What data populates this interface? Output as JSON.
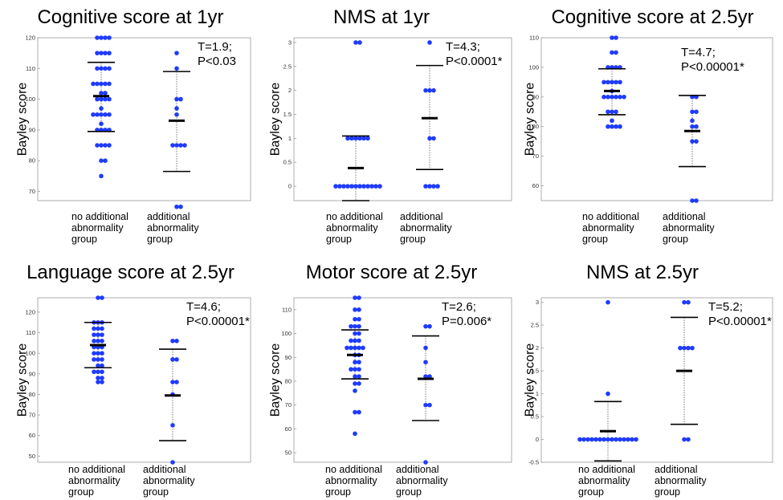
{
  "colors": {
    "point": "#1f3bff",
    "axis": "#9a9a9a",
    "line": "#000000"
  },
  "chart_data": [
    {
      "type": "scatter",
      "title": "Cognitive score at 1yr",
      "ylabel": "Bayley score",
      "xlabel": "",
      "categories": [
        "no additional abnormality group",
        "additional abnormality group"
      ],
      "category_lines": [
        [
          "no additional",
          "abnormality",
          "group"
        ],
        [
          "additional",
          "abnormality",
          "group"
        ]
      ],
      "ylim": [
        67,
        120
      ],
      "yticks": [
        70,
        80,
        90,
        100,
        110,
        120
      ],
      "ytick_labels": [
        "70",
        "80",
        "90",
        "100",
        "110",
        "120"
      ],
      "groups": [
        {
          "name": "no additional abnormality group",
          "mean": 101,
          "sd_low": 89.5,
          "sd_high": 112,
          "points": [
            120,
            120,
            120,
            120,
            115,
            115,
            115,
            115,
            110,
            110,
            110,
            110,
            105,
            105,
            105,
            105,
            105,
            102,
            102,
            100,
            100,
            100,
            100,
            97,
            95,
            95,
            95,
            95,
            95,
            92,
            90,
            90,
            90,
            90,
            85,
            85,
            85,
            85,
            80,
            80,
            75
          ]
        },
        {
          "name": "additional abnormality group",
          "mean": 93,
          "sd_low": 76.5,
          "sd_high": 109,
          "points": [
            115,
            110,
            100,
            100,
            97,
            95,
            85,
            85,
            85,
            85,
            65,
            65
          ]
        }
      ],
      "annotation": [
        "T=1.9;",
        "P<0.03"
      ]
    },
    {
      "type": "scatter",
      "title": "NMS at 1yr",
      "ylabel": "Bayley score",
      "xlabel": "",
      "categories": [
        "no additional abnormality group",
        "additional abnormality group"
      ],
      "category_lines": [
        [
          "no additional",
          "abnormality",
          "group"
        ],
        [
          "additional",
          "abnormality",
          "group"
        ]
      ],
      "ylim": [
        -0.3,
        3.1
      ],
      "yticks": [
        0,
        0.5,
        1,
        1.5,
        2,
        2.5,
        3
      ],
      "ytick_labels": [
        "0",
        "0.5",
        "1",
        "1.5",
        "2",
        "2.5",
        "3"
      ],
      "groups": [
        {
          "name": "no additional abnormality group",
          "mean": 0.38,
          "sd_low": -0.3,
          "sd_high": 1.05,
          "points": [
            3,
            3,
            1,
            1,
            1,
            1,
            1,
            1,
            0,
            0,
            0,
            0,
            0,
            0,
            0,
            0,
            0,
            0,
            0,
            0
          ]
        },
        {
          "name": "additional abnormality group",
          "mean": 1.42,
          "sd_low": 0.35,
          "sd_high": 2.52,
          "points": [
            3,
            2,
            2,
            2,
            1,
            1,
            0,
            0,
            0,
            0
          ]
        }
      ],
      "annotation": [
        "T=4.3;",
        "P<0.0001*"
      ]
    },
    {
      "type": "scatter",
      "title": "Cognitive score at 2.5yr",
      "ylabel": "Bayley score",
      "xlabel": "",
      "categories": [
        "no additional abnormality group",
        "additional abnormality group"
      ],
      "category_lines": [
        [
          "no additional",
          "abnormality",
          "group"
        ],
        [
          "additional",
          "abnormality",
          "group"
        ]
      ],
      "ylim": [
        55,
        110
      ],
      "yticks": [
        60,
        70,
        80,
        90,
        100,
        110
      ],
      "ytick_labels": [
        "60",
        "70",
        "80",
        "90",
        "100",
        "110"
      ],
      "groups": [
        {
          "name": "no additional abnormality group",
          "mean": 92,
          "sd_low": 84,
          "sd_high": 99.5,
          "points": [
            110,
            110,
            105,
            105,
            100,
            100,
            100,
            100,
            95,
            95,
            95,
            95,
            95,
            92,
            90,
            90,
            90,
            90,
            90,
            90,
            85,
            85,
            85,
            82,
            80,
            80,
            80,
            80
          ]
        },
        {
          "name": "additional abnormality group",
          "mean": 78.5,
          "sd_low": 66.5,
          "sd_high": 90.5,
          "points": [
            90,
            90,
            85,
            85,
            82,
            80,
            80,
            75,
            75,
            55,
            55
          ]
        }
      ],
      "annotation": [
        "T=4.7;",
        "P<0.00001*"
      ]
    },
    {
      "type": "scatter",
      "title": "Language score at 2.5yr",
      "ylabel": "Bayley score",
      "xlabel": "",
      "categories": [
        "no additional abnormality group",
        "additional abnormality group"
      ],
      "category_lines": [
        [
          "no additional",
          "abnormality",
          "group"
        ],
        [
          "additional",
          "abnormality",
          "group"
        ]
      ],
      "ylim": [
        47,
        127
      ],
      "yticks": [
        50,
        60,
        70,
        80,
        90,
        100,
        110,
        120
      ],
      "ytick_labels": [
        "50",
        "60",
        "70",
        "80",
        "90",
        "100",
        "110",
        "120"
      ],
      "groups": [
        {
          "name": "no additional abnormality group",
          "mean": 104,
          "sd_low": 93,
          "sd_high": 115,
          "points": [
            127,
            127,
            115,
            115,
            115,
            112,
            112,
            112,
            109,
            109,
            109,
            106,
            106,
            106,
            103,
            103,
            103,
            100,
            100,
            100,
            97,
            97,
            97,
            94,
            94,
            91,
            91,
            91,
            88,
            88,
            86,
            86
          ]
        },
        {
          "name": "additional abnormality group",
          "mean": 79.5,
          "sd_low": 57.5,
          "sd_high": 102,
          "points": [
            106,
            106,
            97,
            97,
            86,
            86,
            80,
            65,
            47
          ]
        }
      ],
      "annotation": [
        "T=4.6;",
        "P<0.00001*"
      ]
    },
    {
      "type": "scatter",
      "title": "Motor score at 2.5yr",
      "ylabel": "Bayley score",
      "xlabel": "",
      "categories": [
        "no additional abnormality group",
        "additional abnormality group"
      ],
      "category_lines": [
        [
          "no additional",
          "abnormality",
          "group"
        ],
        [
          "additional",
          "abnormality",
          "group"
        ]
      ],
      "ylim": [
        46,
        115
      ],
      "yticks": [
        50,
        60,
        70,
        80,
        90,
        100,
        110
      ],
      "ytick_labels": [
        "50",
        "60",
        "70",
        "80",
        "90",
        "100",
        "110"
      ],
      "groups": [
        {
          "name": "no additional abnormality group",
          "mean": 91,
          "sd_low": 81,
          "sd_high": 101.5,
          "points": [
            115,
            115,
            110,
            110,
            106,
            106,
            103,
            103,
            103,
            100,
            100,
            97,
            97,
            97,
            94,
            94,
            94,
            94,
            94,
            91,
            91,
            88,
            88,
            85,
            85,
            85,
            82,
            82,
            79,
            79,
            76,
            67,
            67,
            58
          ]
        },
        {
          "name": "additional abnormality group",
          "mean": 81,
          "sd_low": 63.5,
          "sd_high": 99,
          "points": [
            103,
            103,
            94,
            88,
            82,
            82,
            70,
            70,
            46
          ]
        }
      ],
      "annotation": [
        "T=2.6;",
        "P=0.006*"
      ]
    },
    {
      "type": "scatter",
      "title": "NMS at 2.5yr",
      "ylabel": "Bayley score",
      "xlabel": "",
      "categories": [
        "no additional abnormality group",
        "additional abnormality group"
      ],
      "category_lines": [
        [
          "no additional",
          "abnormality",
          "group"
        ],
        [
          "additional",
          "abnormality",
          "group"
        ]
      ],
      "ylim": [
        -0.5,
        3.1
      ],
      "yticks": [
        -0.5,
        0,
        0.5,
        1,
        1.5,
        2,
        2.5,
        3
      ],
      "ytick_labels": [
        "-0.5",
        "0",
        "0.5",
        "1",
        "1.5",
        "2",
        "2.5",
        "3"
      ],
      "groups": [
        {
          "name": "no additional abnormality group",
          "mean": 0.18,
          "sd_low": -0.47,
          "sd_high": 0.83,
          "points": [
            3,
            1,
            0,
            0,
            0,
            0,
            0,
            0,
            0,
            0,
            0,
            0,
            0,
            0,
            0,
            0,
            0
          ]
        },
        {
          "name": "additional abnormality group",
          "mean": 1.5,
          "sd_low": 0.33,
          "sd_high": 2.67,
          "points": [
            3,
            3,
            2,
            2,
            2,
            2,
            0,
            0
          ]
        }
      ],
      "annotation": [
        "T=5.2;",
        "P<0.00001*"
      ]
    }
  ]
}
